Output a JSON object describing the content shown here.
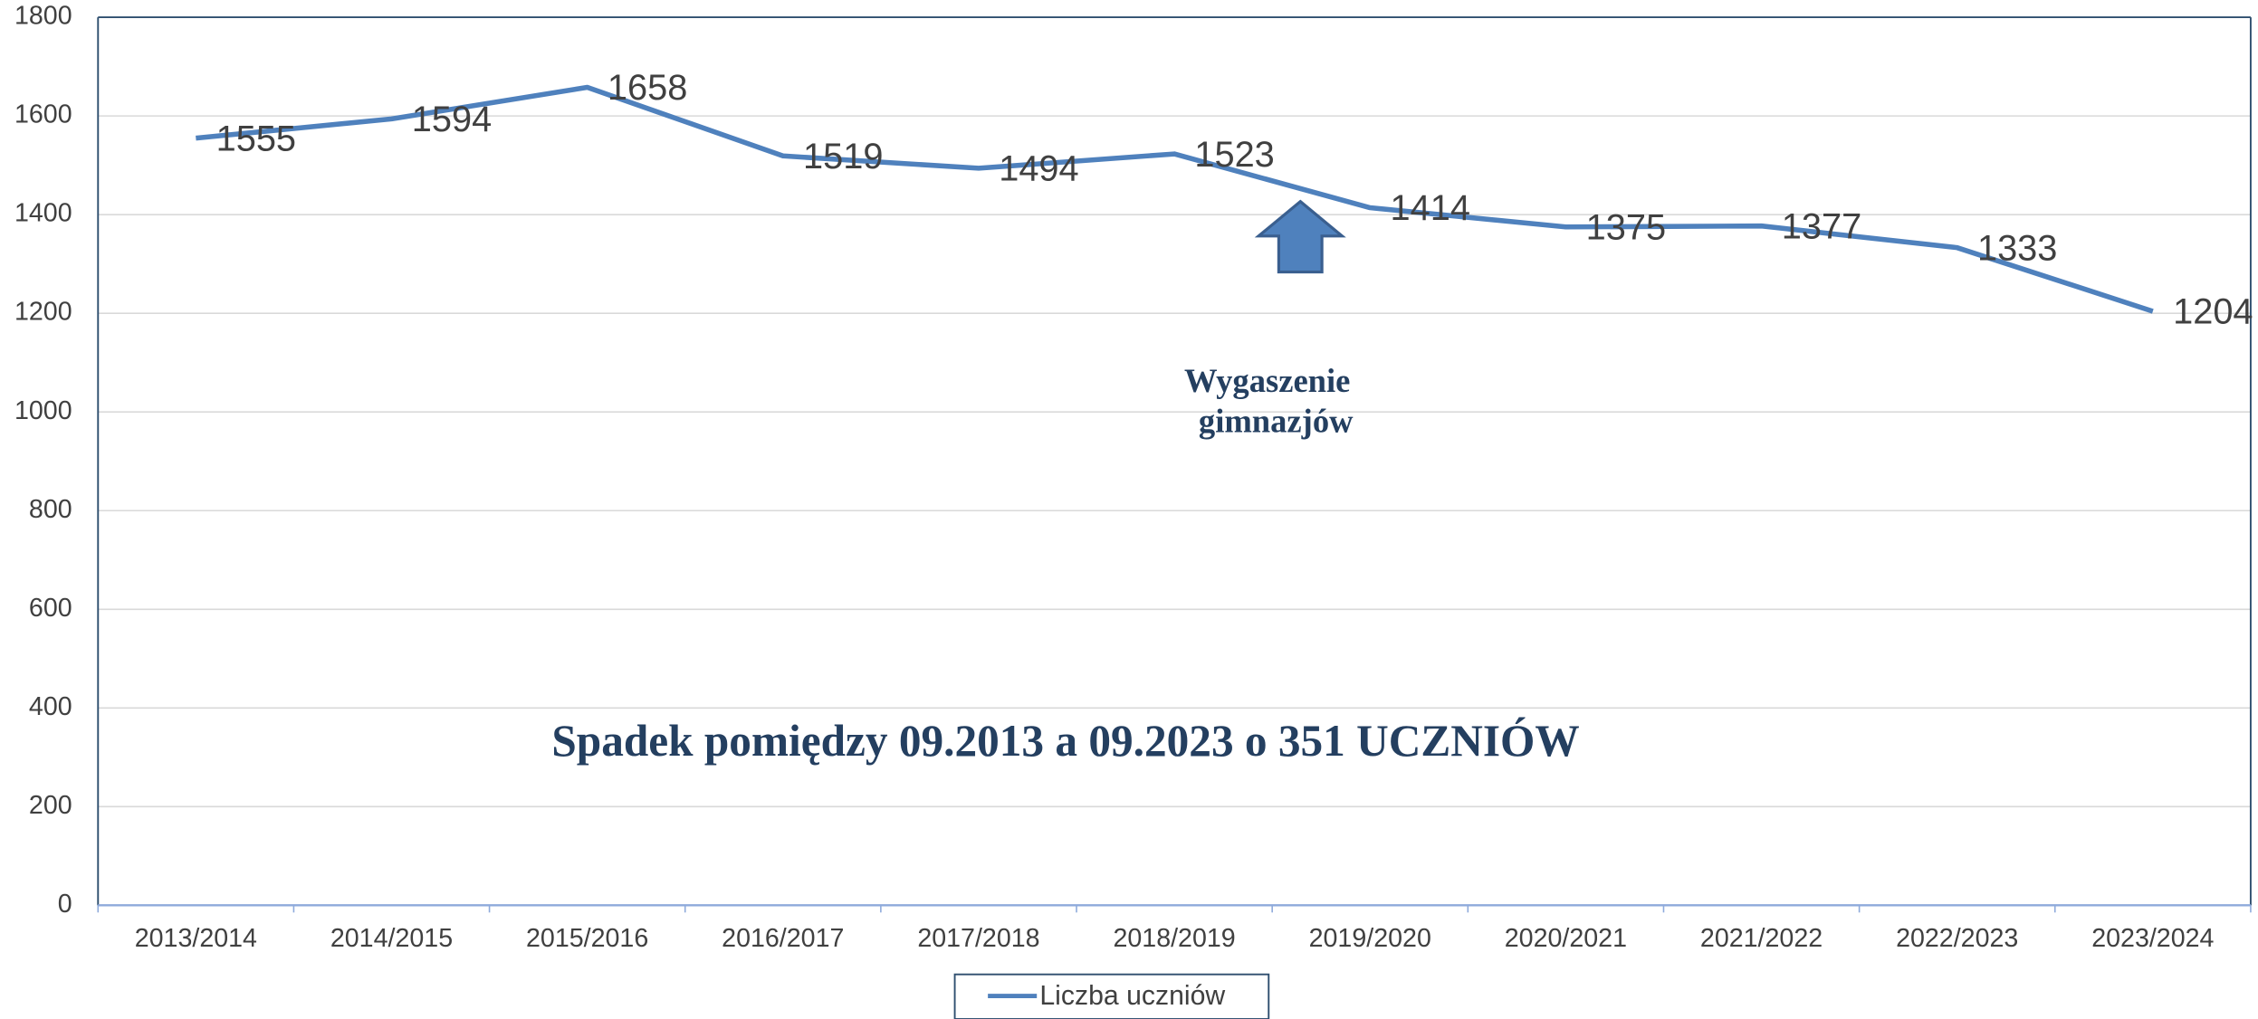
{
  "chart_data": {
    "type": "line",
    "categories": [
      "2013/2014",
      "2014/2015",
      "2015/2016",
      "2016/2017",
      "2017/2018",
      "2018/2019",
      "2019/2020",
      "2020/2021",
      "2021/2022",
      "2022/2023",
      "2023/2024"
    ],
    "series": [
      {
        "name": "Liczba uczniów",
        "color": "#4f81bd",
        "values": [
          1555,
          1594,
          1658,
          1519,
          1494,
          1523,
          1414,
          1375,
          1377,
          1333,
          1204
        ]
      }
    ],
    "ylim": [
      0,
      1800
    ],
    "yticks": [
      0,
      200,
      400,
      600,
      800,
      1000,
      1200,
      1400,
      1600,
      1800
    ],
    "grid": true,
    "legend": "bottom",
    "arrow_note": [
      "Wygaszenie",
      "gimnazjów"
    ],
    "note": "Spadek pomiędzy 09.2013 a 09.2023 o 351 UCZNIÓW"
  }
}
